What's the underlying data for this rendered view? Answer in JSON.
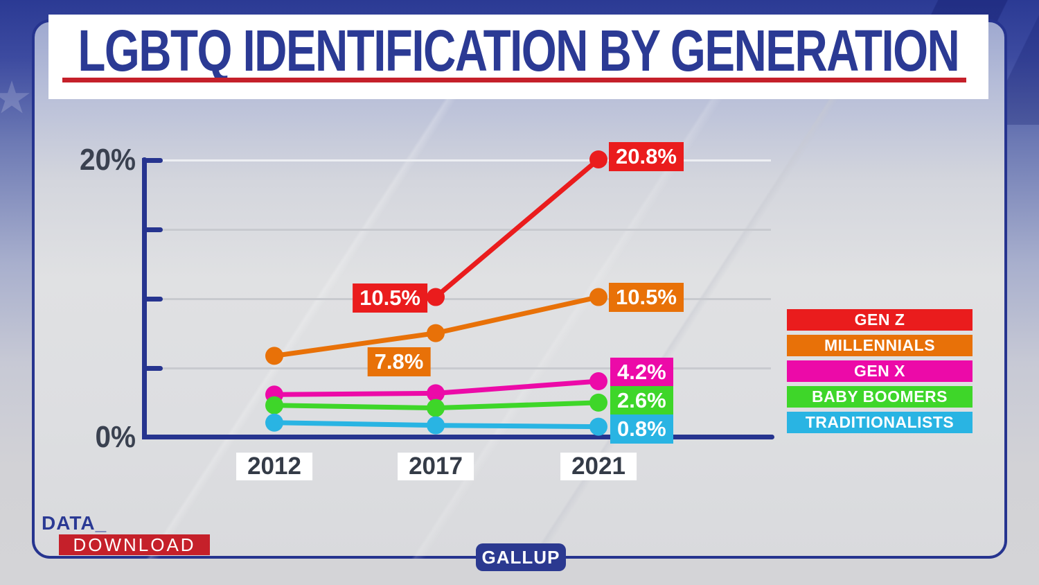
{
  "title": "LGBTQ IDENTIFICATION BY GENERATION",
  "source_label": "GALLUP",
  "logo": {
    "line1": "DATA_",
    "line2": "DOWNLOAD"
  },
  "colors": {
    "brand_navy": "#2b3a94",
    "accent_red": "#c5202a",
    "axis_navy": "#26348f",
    "label_charcoal": "#3a4150",
    "gridline_gray": "#c8cacf",
    "gridline_top_white": "#edeff3"
  },
  "chart_data": {
    "type": "line",
    "title": "LGBTQ IDENTIFICATION BY GENERATION",
    "x_categories": [
      "2012",
      "2017",
      "2021"
    ],
    "ylim": [
      0,
      20
    ],
    "ytick_interval": 5,
    "ytick_labels_shown": [
      "20%",
      "0%"
    ],
    "grid": true,
    "legend_position": "right",
    "source": "GALLUP",
    "series": [
      {
        "name": "GEN Z",
        "color": "#ea1c1d",
        "values": [
          null,
          10.5,
          20.8
        ],
        "point_labels": [
          null,
          "10.5%",
          "20.8%"
        ]
      },
      {
        "name": "MILLENNIALS",
        "color": "#e87108",
        "values": [
          6.1,
          7.8,
          10.5
        ],
        "point_labels": [
          null,
          "7.8%",
          "10.5%"
        ]
      },
      {
        "name": "GEN X",
        "color": "#ec0aa8",
        "values": [
          3.2,
          3.3,
          4.2
        ],
        "point_labels": [
          null,
          null,
          "4.2%"
        ]
      },
      {
        "name": "BABY BOOMERS",
        "color": "#3ed629",
        "values": [
          2.4,
          2.2,
          2.6
        ],
        "point_labels": [
          null,
          null,
          "2.6%"
        ]
      },
      {
        "name": "TRADITIONALISTS",
        "color": "#29b4e3",
        "values": [
          1.1,
          0.9,
          0.8
        ],
        "point_labels": [
          null,
          null,
          "0.8%"
        ]
      }
    ]
  }
}
